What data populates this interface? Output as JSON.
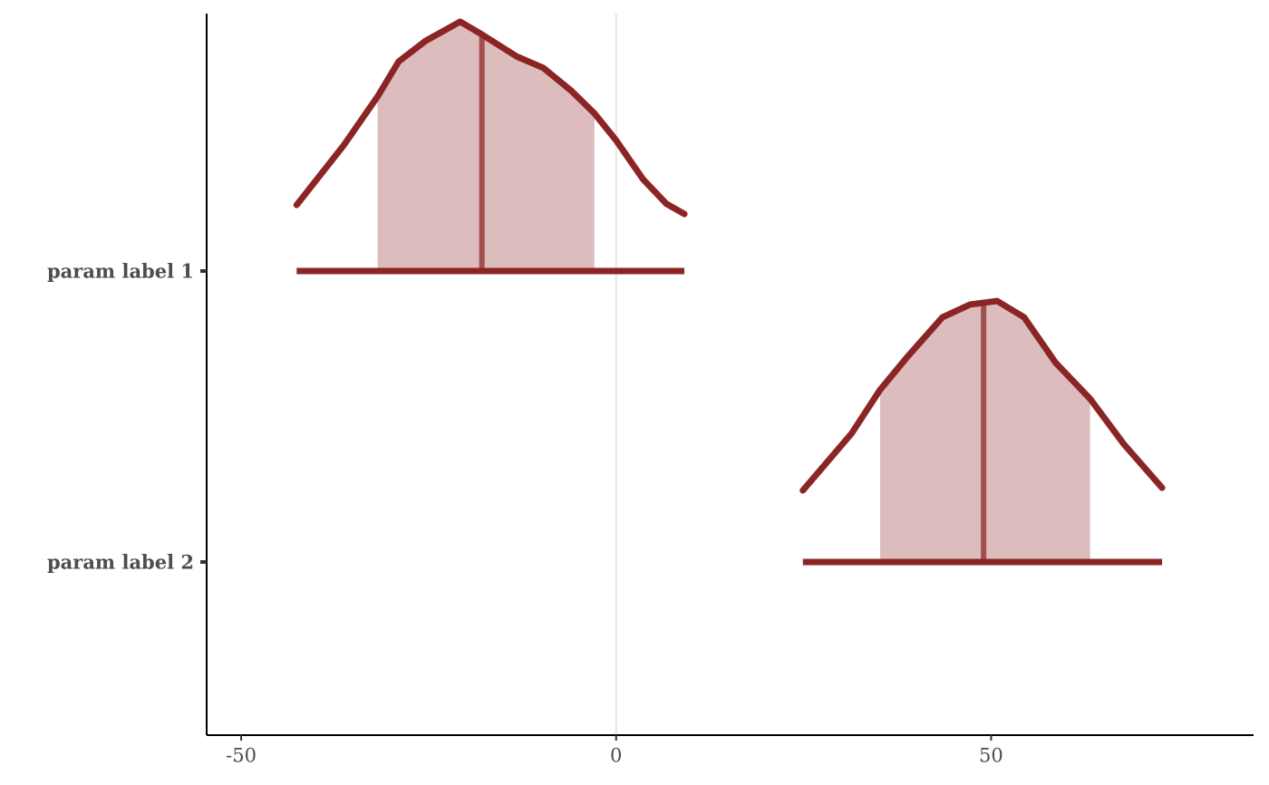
{
  "chart_data": {
    "type": "areas",
    "categories": [
      "param label 1",
      "param label 2"
    ],
    "xlim": [
      -54.6,
      85.0
    ],
    "xticks": [
      -50,
      0,
      50
    ],
    "vline": 0,
    "line_color": "#8b2525",
    "fill_color": "#dcbcbd",
    "median_color": "#a0504c",
    "vline_color": "#e6e6e6",
    "series": [
      {
        "outer": [
          -42.6,
          9.1
        ],
        "inner": [
          -31.8,
          -2.9
        ],
        "median": -17.9,
        "x": [
          -42.6,
          -36.3,
          -31.8,
          -29.0,
          -25.4,
          -20.8,
          -17.9,
          -13.3,
          -9.7,
          -6.0,
          -2.9,
          0,
          3.6,
          6.7,
          9.1
        ],
        "density": [
          0.227,
          0.433,
          0.6,
          0.72,
          0.791,
          0.857,
          0.813,
          0.738,
          0.698,
          0.62,
          0.542,
          0.449,
          0.315,
          0.231,
          0.196
        ]
      },
      {
        "outer": [
          24.9,
          72.8
        ],
        "inner": [
          35.2,
          63.2
        ],
        "median": 49.0,
        "x": [
          24.9,
          31.4,
          35.2,
          38.7,
          43.5,
          47.2,
          50.8,
          54.4,
          58.6,
          63.2,
          67.7,
          72.8
        ],
        "density": [
          0.246,
          0.442,
          0.592,
          0.701,
          0.841,
          0.885,
          0.897,
          0.841,
          0.685,
          0.561,
          0.405,
          0.255
        ]
      }
    ]
  }
}
